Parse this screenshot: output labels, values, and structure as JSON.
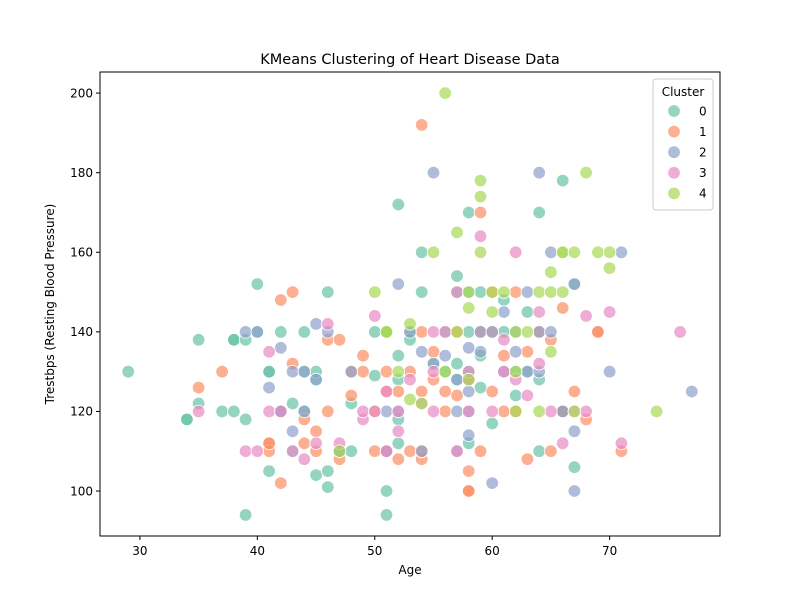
{
  "chart_data": {
    "type": "scatter",
    "title": "KMeans Clustering of Heart Disease Data",
    "xlabel": "Age",
    "ylabel": "Trestbps (Resting Blood Pressure)",
    "xlim": [
      26.6,
      79.4
    ],
    "ylim": [
      88.7,
      205.3
    ],
    "xticks": [
      30,
      40,
      50,
      60,
      70
    ],
    "yticks": [
      100,
      120,
      140,
      160,
      180,
      200
    ],
    "grid": false,
    "legend": {
      "title": "Cluster",
      "placement": "top-right"
    },
    "series": [
      {
        "name": "0",
        "color": "#66c2a5",
        "points": [
          [
            29,
            130
          ],
          [
            34,
            118
          ],
          [
            34,
            118
          ],
          [
            35,
            122
          ],
          [
            35,
            138
          ],
          [
            37,
            120
          ],
          [
            38,
            138
          ],
          [
            38,
            138
          ],
          [
            38,
            120
          ],
          [
            39,
            118
          ],
          [
            39,
            138
          ],
          [
            39,
            94
          ],
          [
            40,
            152
          ],
          [
            40,
            140
          ],
          [
            41,
            130
          ],
          [
            41,
            105
          ],
          [
            41,
            130
          ],
          [
            42,
            120
          ],
          [
            42,
            140
          ],
          [
            43,
            110
          ],
          [
            43,
            122
          ],
          [
            44,
            130
          ],
          [
            44,
            140
          ],
          [
            44,
            120
          ],
          [
            45,
            104
          ],
          [
            45,
            128
          ],
          [
            45,
            130
          ],
          [
            46,
            150
          ],
          [
            46,
            101
          ],
          [
            46,
            105
          ],
          [
            47,
            110
          ],
          [
            48,
            110
          ],
          [
            48,
            122
          ],
          [
            50,
            129
          ],
          [
            50,
            140
          ],
          [
            51,
            100
          ],
          [
            51,
            94
          ],
          [
            51,
            140
          ],
          [
            52,
            134
          ],
          [
            52,
            128
          ],
          [
            52,
            118
          ],
          [
            52,
            112
          ],
          [
            52,
            172
          ],
          [
            53,
            140
          ],
          [
            53,
            138
          ],
          [
            54,
            150
          ],
          [
            54,
            160
          ],
          [
            55,
            132
          ],
          [
            56,
            140
          ],
          [
            56,
            130
          ],
          [
            57,
            154
          ],
          [
            57,
            150
          ],
          [
            57,
            132
          ],
          [
            57,
            128
          ],
          [
            58,
            170
          ],
          [
            58,
            150
          ],
          [
            58,
            140
          ],
          [
            58,
            130
          ],
          [
            58,
            112
          ],
          [
            59,
            134
          ],
          [
            59,
            126
          ],
          [
            59,
            150
          ],
          [
            60,
            117
          ],
          [
            61,
            148
          ],
          [
            61,
            140
          ],
          [
            62,
            130
          ],
          [
            62,
            124
          ],
          [
            63,
            130
          ],
          [
            63,
            145
          ],
          [
            64,
            170
          ],
          [
            64,
            128
          ],
          [
            64,
            110
          ],
          [
            66,
            178
          ],
          [
            66,
            120
          ],
          [
            67,
            106
          ],
          [
            67,
            152
          ]
        ]
      },
      {
        "name": "1",
        "color": "#fc8d62",
        "points": [
          [
            35,
            126
          ],
          [
            37,
            130
          ],
          [
            41,
            112
          ],
          [
            41,
            110
          ],
          [
            41,
            112
          ],
          [
            42,
            148
          ],
          [
            42,
            102
          ],
          [
            43,
            150
          ],
          [
            43,
            132
          ],
          [
            44,
            112
          ],
          [
            44,
            118
          ],
          [
            45,
            110
          ],
          [
            45,
            115
          ],
          [
            46,
            138
          ],
          [
            46,
            120
          ],
          [
            47,
            108
          ],
          [
            47,
            138
          ],
          [
            48,
            124
          ],
          [
            48,
            130
          ],
          [
            49,
            134
          ],
          [
            49,
            130
          ],
          [
            50,
            110
          ],
          [
            50,
            120
          ],
          [
            51,
            125
          ],
          [
            51,
            110
          ],
          [
            51,
            130
          ],
          [
            52,
            108
          ],
          [
            52,
            125
          ],
          [
            53,
            130
          ],
          [
            53,
            110
          ],
          [
            54,
            192
          ],
          [
            54,
            140
          ],
          [
            54,
            125
          ],
          [
            54,
            108
          ],
          [
            54,
            110
          ],
          [
            55,
            135
          ],
          [
            55,
            128
          ],
          [
            56,
            120
          ],
          [
            56,
            125
          ],
          [
            57,
            140
          ],
          [
            57,
            124
          ],
          [
            58,
            105
          ],
          [
            58,
            100
          ],
          [
            58,
            100
          ],
          [
            58,
            128
          ],
          [
            59,
            110
          ],
          [
            59,
            140
          ],
          [
            59,
            170
          ],
          [
            60,
            150
          ],
          [
            60,
            125
          ],
          [
            60,
            140
          ],
          [
            61,
            120
          ],
          [
            61,
            134
          ],
          [
            62,
            150
          ],
          [
            62,
            120
          ],
          [
            63,
            108
          ],
          [
            63,
            135
          ],
          [
            64,
            140
          ],
          [
            65,
            138
          ],
          [
            65,
            110
          ],
          [
            66,
            146
          ],
          [
            66,
            120
          ],
          [
            67,
            125
          ],
          [
            68,
            118
          ],
          [
            69,
            140
          ],
          [
            69,
            140
          ],
          [
            71,
            110
          ]
        ]
      },
      {
        "name": "2",
        "color": "#8da0cb",
        "points": [
          [
            39,
            140
          ],
          [
            40,
            140
          ],
          [
            41,
            126
          ],
          [
            42,
            120
          ],
          [
            42,
            136
          ],
          [
            43,
            115
          ],
          [
            43,
            130
          ],
          [
            44,
            130
          ],
          [
            44,
            120
          ],
          [
            45,
            142
          ],
          [
            45,
            128
          ],
          [
            46,
            140
          ],
          [
            47,
            110
          ],
          [
            48,
            130
          ],
          [
            51,
            120
          ],
          [
            51,
            110
          ],
          [
            52,
            152
          ],
          [
            52,
            120
          ],
          [
            53,
            140
          ],
          [
            54,
            135
          ],
          [
            54,
            110
          ],
          [
            55,
            180
          ],
          [
            55,
            132
          ],
          [
            56,
            134
          ],
          [
            57,
            128
          ],
          [
            57,
            120
          ],
          [
            57,
            110
          ],
          [
            58,
            125
          ],
          [
            58,
            136
          ],
          [
            58,
            120
          ],
          [
            58,
            114
          ],
          [
            59,
            135
          ],
          [
            59,
            140
          ],
          [
            60,
            102
          ],
          [
            60,
            140
          ],
          [
            61,
            145
          ],
          [
            61,
            130
          ],
          [
            62,
            140
          ],
          [
            62,
            135
          ],
          [
            63,
            150
          ],
          [
            63,
            130
          ],
          [
            64,
            180
          ],
          [
            64,
            140
          ],
          [
            64,
            130
          ],
          [
            65,
            160
          ],
          [
            65,
            140
          ],
          [
            66,
            120
          ],
          [
            67,
            152
          ],
          [
            67,
            115
          ],
          [
            67,
            100
          ],
          [
            70,
            130
          ],
          [
            71,
            160
          ],
          [
            77,
            125
          ]
        ]
      },
      {
        "name": "3",
        "color": "#e78ac3",
        "points": [
          [
            35,
            120
          ],
          [
            39,
            110
          ],
          [
            40,
            110
          ],
          [
            41,
            120
          ],
          [
            41,
            135
          ],
          [
            42,
            120
          ],
          [
            43,
            110
          ],
          [
            44,
            108
          ],
          [
            45,
            112
          ],
          [
            46,
            142
          ],
          [
            47,
            112
          ],
          [
            49,
            118
          ],
          [
            49,
            120
          ],
          [
            50,
            120
          ],
          [
            50,
            144
          ],
          [
            51,
            110
          ],
          [
            51,
            125
          ],
          [
            52,
            115
          ],
          [
            52,
            120
          ],
          [
            53,
            128
          ],
          [
            54,
            122
          ],
          [
            55,
            130
          ],
          [
            55,
            120
          ],
          [
            55,
            140
          ],
          [
            56,
            140
          ],
          [
            57,
            110
          ],
          [
            57,
            150
          ],
          [
            58,
            120
          ],
          [
            58,
            128
          ],
          [
            58,
            130
          ],
          [
            59,
            164
          ],
          [
            60,
            120
          ],
          [
            61,
            130
          ],
          [
            61,
            138
          ],
          [
            62,
            128
          ],
          [
            62,
            160
          ],
          [
            63,
            124
          ],
          [
            64,
            145
          ],
          [
            64,
            132
          ],
          [
            65,
            120
          ],
          [
            66,
            112
          ],
          [
            67,
            120
          ],
          [
            68,
            144
          ],
          [
            68,
            120
          ],
          [
            70,
            145
          ],
          [
            71,
            112
          ],
          [
            76,
            140
          ]
        ]
      },
      {
        "name": "4",
        "color": "#a6d854",
        "points": [
          [
            47,
            110
          ],
          [
            50,
            150
          ],
          [
            51,
            140
          ],
          [
            51,
            140
          ],
          [
            52,
            130
          ],
          [
            53,
            142
          ],
          [
            53,
            123
          ],
          [
            54,
            122
          ],
          [
            55,
            160
          ],
          [
            56,
            200
          ],
          [
            56,
            130
          ],
          [
            57,
            165
          ],
          [
            57,
            140
          ],
          [
            58,
            146
          ],
          [
            58,
            150
          ],
          [
            58,
            128
          ],
          [
            59,
            178
          ],
          [
            59,
            174
          ],
          [
            59,
            160
          ],
          [
            60,
            145
          ],
          [
            60,
            150
          ],
          [
            61,
            150
          ],
          [
            62,
            130
          ],
          [
            62,
            140
          ],
          [
            62,
            120
          ],
          [
            63,
            140
          ],
          [
            64,
            150
          ],
          [
            64,
            120
          ],
          [
            65,
            155
          ],
          [
            65,
            150
          ],
          [
            65,
            135
          ],
          [
            66,
            160
          ],
          [
            66,
            160
          ],
          [
            66,
            150
          ],
          [
            67,
            160
          ],
          [
            67,
            120
          ],
          [
            68,
            180
          ],
          [
            69,
            160
          ],
          [
            70,
            160
          ],
          [
            70,
            156
          ],
          [
            74,
            120
          ]
        ]
      }
    ]
  }
}
